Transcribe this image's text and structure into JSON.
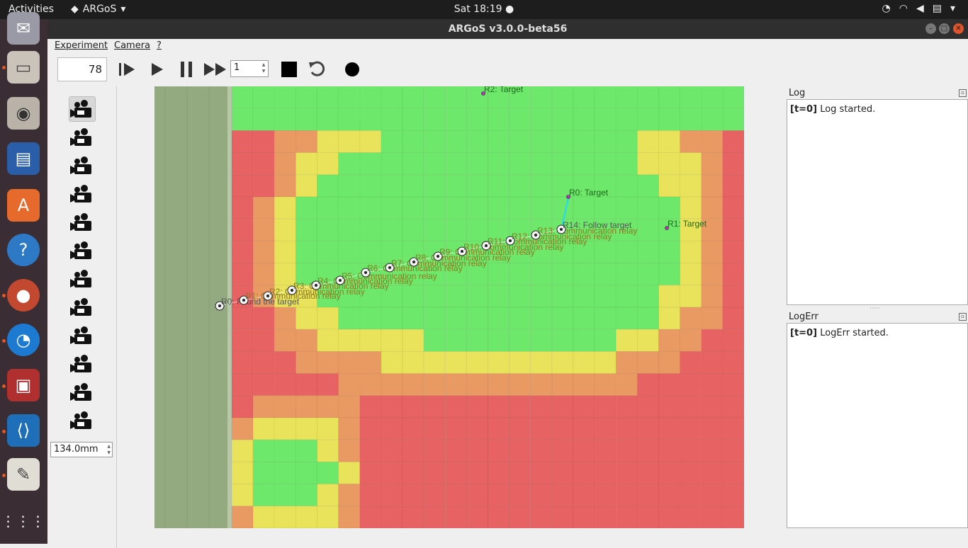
{
  "topbar": {
    "activities": "Activities",
    "app_name": "ARGoS",
    "clock": "Sat 18:19 ●"
  },
  "window": {
    "title": "ARGoS v3.0.0-beta56"
  },
  "menu": {
    "experiment": "Experiment",
    "camera": "Camera",
    "help": "?"
  },
  "toolbar": {
    "step_counter": "78",
    "steps_value": "1"
  },
  "camera_panel": {
    "zoom_value": "134.0mm"
  },
  "arena": {
    "heatmap": [
      "GGGGGGGGGGGGGGGGGGGGGGGG",
      "GGGGGGGGGGGGGGGGGGGGGGGG",
      "RROOYYYGGGGGGGGGGGGYYOOR",
      "RROYYGGGGGGGGGGGGGGYYYOR",
      "RROYGGGGGGGGGGGGGGGGYYOR",
      "ROYGGGGGGGGGGGGGGGGGGYOR",
      "ROYGGGGGGGGGGGGGGGGGGYOR",
      "ROYGGGGGGGGGGGGGGGGGGYOR",
      "ROYGGGGGGGGGGGGGGGGGGYOR",
      "ROYYGGGGGGGGGGGGGGGGYYOR",
      "RROYYGGGGGGGGGGGGGGGYOOR",
      "RROOYYYYYGGGGGGGGGYYOORR",
      "RRROOOOYYYYYYYYYYYOOORRR",
      "RRRRROOOOOOOOOOOOOORRRRR",
      "ROOOOORRRRRRRRRRRRRRRRRR",
      "OYYYYORRRRRRRRRRRRRRRRRR",
      "YGGGYORRRRRRRRRRRRRRRRRR",
      "YGGGGYRRRRRRRRRRRRRRRRRR",
      "YGGGYORRRRRRRRRRRRRRRRRR",
      "OYYYYORRRRRRRRRRRRRRRRRR"
    ],
    "robots": [
      {
        "label": "R0: Found the target",
        "role": "source"
      },
      {
        "label": "R1: Communication relay",
        "role": "relay"
      },
      {
        "label": "R2: Communication relay",
        "role": "relay"
      },
      {
        "label": "R3: Communication relay",
        "role": "relay"
      },
      {
        "label": "R4: Communication relay",
        "role": "relay"
      },
      {
        "label": "R5: Communication relay",
        "role": "relay"
      },
      {
        "label": "R6: Communication relay",
        "role": "relay"
      },
      {
        "label": "R7: Communication relay",
        "role": "relay"
      },
      {
        "label": "R8: Communication relay",
        "role": "relay"
      },
      {
        "label": "R9: Communication relay",
        "role": "relay"
      },
      {
        "label": "R10: Communication relay",
        "role": "relay"
      },
      {
        "label": "R11: Communication relay",
        "role": "relay"
      },
      {
        "label": "R12: Communication relay",
        "role": "relay"
      },
      {
        "label": "R13: Communication relay",
        "role": "relay"
      },
      {
        "label": "R14: Follow target",
        "role": "follower"
      }
    ],
    "targets": [
      {
        "label": "R0: Target"
      },
      {
        "label": "R1: Target"
      },
      {
        "label": "R2: Target"
      }
    ]
  },
  "log": {
    "title": "Log",
    "prefix": "[t=0]",
    "text": "Log started."
  },
  "logerr": {
    "title": "LogErr",
    "prefix": "[t=0]",
    "text": "LogErr started."
  }
}
